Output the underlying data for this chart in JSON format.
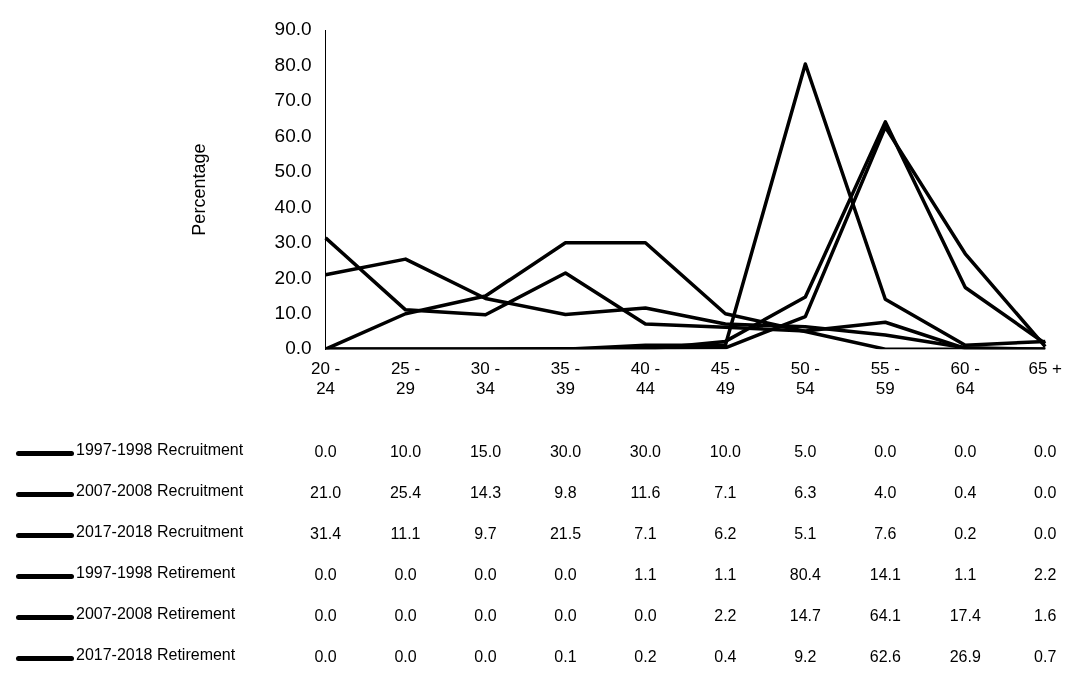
{
  "chart_data": {
    "type": "line",
    "ylabel": "Percentage",
    "categories": [
      "20 - 24",
      "25 - 29",
      "30 - 34",
      "35 - 39",
      "40 - 44",
      "45 - 49",
      "50 - 54",
      "55 - 59",
      "60 - 64",
      "65 +"
    ],
    "series": [
      {
        "name": "1997-1998 Recruitment",
        "color": "#000000",
        "values": [
          0.0,
          10.0,
          15.0,
          30.0,
          30.0,
          10.0,
          5.0,
          0.0,
          0.0,
          0.0
        ],
        "value_labels": [
          "0.0",
          "10.0",
          "15.0",
          "30.0",
          "30.0",
          "10.0",
          "5.0",
          "0.0",
          "0.0",
          "0.0"
        ]
      },
      {
        "name": "2007-2008 Recruitment",
        "color": "#000000",
        "values": [
          21.0,
          25.4,
          14.3,
          9.8,
          11.6,
          7.1,
          6.3,
          4.0,
          0.4,
          0.0
        ],
        "value_labels": [
          "21.0",
          "25.4",
          "14.3",
          "9.8",
          "11.6",
          "7.1",
          "6.3",
          "4.0",
          "0.4",
          "0.0"
        ]
      },
      {
        "name": "2017-2018 Recruitment",
        "color": "#000000",
        "values": [
          31.4,
          11.1,
          9.7,
          21.5,
          7.1,
          6.2,
          5.1,
          7.6,
          0.2,
          0.0
        ],
        "value_labels": [
          "31.4",
          "11.1",
          "9.7",
          "21.5",
          "7.1",
          "6.2",
          "5.1",
          "7.6",
          "0.2",
          "0.0"
        ]
      },
      {
        "name": "1997-1998 Retirement",
        "color": "#000000",
        "values": [
          0.0,
          0.0,
          0.0,
          0.0,
          1.1,
          1.1,
          80.4,
          14.1,
          1.1,
          2.2
        ],
        "value_labels": [
          "0.0",
          "0.0",
          "0.0",
          "0.0",
          "1.1",
          "1.1",
          "80.4",
          "14.1",
          "1.1",
          "2.2"
        ]
      },
      {
        "name": "2007-2008 Retirement",
        "color": "#000000",
        "values": [
          0.0,
          0.0,
          0.0,
          0.0,
          0.0,
          2.2,
          14.7,
          64.1,
          17.4,
          1.6
        ],
        "value_labels": [
          "0.0",
          "0.0",
          "0.0",
          "0.0",
          "0.0",
          "2.2",
          "14.7",
          "64.1",
          "17.4",
          "1.6"
        ]
      },
      {
        "name": "2017-2018 Retirement",
        "color": "#000000",
        "values": [
          0.0,
          0.0,
          0.0,
          0.1,
          0.2,
          0.4,
          9.2,
          62.6,
          26.9,
          0.7
        ],
        "value_labels": [
          "0.0",
          "0.0",
          "0.0",
          "0.1",
          "0.2",
          "0.4",
          "9.2",
          "62.6",
          "26.9",
          "0.7"
        ]
      }
    ],
    "ylim": [
      0,
      90
    ],
    "yticks": [
      {
        "value": 0,
        "label": "0.0"
      },
      {
        "value": 10,
        "label": "10.0"
      },
      {
        "value": 20,
        "label": "20.0"
      },
      {
        "value": 30,
        "label": "30.0"
      },
      {
        "value": 40,
        "label": "40.0"
      },
      {
        "value": 50,
        "label": "50.0"
      },
      {
        "value": 60,
        "label": "60.0"
      },
      {
        "value": 70,
        "label": "70.0"
      },
      {
        "value": 80,
        "label": "80.0"
      },
      {
        "value": 90,
        "label": "90.0"
      }
    ],
    "grid": false,
    "legend": "bottom",
    "marker": "none",
    "line_style": "solid"
  }
}
